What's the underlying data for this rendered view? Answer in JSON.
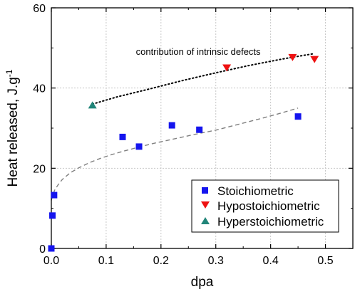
{
  "chart_data": {
    "type": "scatter",
    "xlabel": "dpa",
    "ylabel": "Heat released, J.g",
    "ylabel_superscript": "-1",
    "xlim": [
      0,
      0.55
    ],
    "ylim": [
      0,
      60
    ],
    "x_ticks": [
      0.0,
      0.1,
      0.2,
      0.3,
      0.4,
      0.5
    ],
    "x_tick_labels": [
      "0.0",
      "0.1",
      "0.2",
      "0.3",
      "0.4",
      "0.5"
    ],
    "y_ticks": [
      0,
      20,
      40,
      60
    ],
    "y_tick_labels": [
      "0",
      "20",
      "40",
      "60"
    ],
    "grid": true,
    "legend_position": "bottom-right",
    "series": [
      {
        "name": "Stoichiometric",
        "marker": "square",
        "color": "#1515ee",
        "x": [
          0.0,
          0.002,
          0.005,
          0.13,
          0.16,
          0.22,
          0.27,
          0.45
        ],
        "y": [
          0.0,
          8.2,
          13.3,
          27.8,
          25.4,
          30.7,
          29.6,
          32.9
        ]
      },
      {
        "name": "Hypostoichiometric",
        "marker": "triangle-down",
        "color": "#ee1111",
        "x": [
          0.32,
          0.44,
          0.48
        ],
        "y": [
          45.0,
          47.6,
          47.1
        ]
      },
      {
        "name": "Hyperstoichiometric",
        "marker": "triangle-up",
        "color": "#218579",
        "x": [
          0.075
        ],
        "y": [
          35.8
        ]
      }
    ],
    "fit_lines": [
      {
        "style": "dashed",
        "color": "#808080",
        "x": [
          0.0,
          0.002,
          0.006,
          0.012,
          0.02,
          0.035,
          0.05,
          0.07,
          0.09,
          0.11,
          0.13,
          0.16,
          0.19,
          0.22,
          0.26,
          0.3,
          0.34,
          0.38,
          0.42,
          0.45
        ],
        "y": [
          12.0,
          13.0,
          14.5,
          15.8,
          17.2,
          18.9,
          20.1,
          21.4,
          22.5,
          23.4,
          24.2,
          25.3,
          26.3,
          27.2,
          28.4,
          29.5,
          30.9,
          32.3,
          33.8,
          35.0
        ]
      },
      {
        "style": "dotted",
        "color": "#000000",
        "x": [
          0.075,
          0.12,
          0.18,
          0.24,
          0.3,
          0.36,
          0.42,
          0.48
        ],
        "y": [
          36.0,
          37.8,
          39.8,
          41.9,
          43.8,
          45.6,
          47.2,
          48.6
        ]
      }
    ],
    "annotations": [
      {
        "text": "contribution of intrinsic defects",
        "x": 0.268,
        "y": 48.3
      }
    ]
  }
}
